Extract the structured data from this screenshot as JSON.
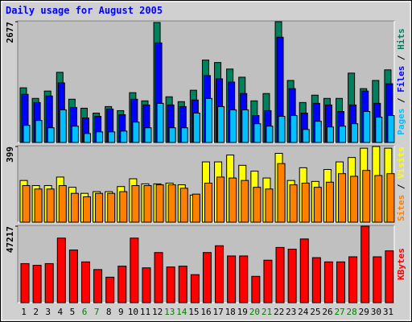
{
  "chart_data": [
    {
      "type": "bar",
      "title": "Daily usage for August 2005",
      "legend_separator": " / ",
      "ylim": [
        0,
        2677
      ],
      "yticks": [
        2677
      ],
      "series": [
        {
          "name": "Hits",
          "color": "#00805c",
          "values": [
            1212,
            977,
            1140,
            1556,
            959,
            760,
            651,
            796,
            706,
            1104,
            923,
            2660,
            1013,
            905,
            1158,
            1827,
            1773,
            1628,
            1447,
            923,
            1085,
            2677,
            1375,
            886,
            1049,
            977,
            977,
            1538,
            1194,
            1375,
            1610
          ]
        },
        {
          "name": "Files",
          "color": "#0000ff",
          "values": [
            1067,
            886,
            1031,
            1321,
            778,
            543,
            579,
            742,
            615,
            959,
            832,
            2207,
            832,
            796,
            941,
            1483,
            1411,
            1339,
            1085,
            597,
            706,
            2333,
            1194,
            651,
            868,
            832,
            687,
            832,
            1140,
            868,
            1302
          ]
        },
        {
          "name": "Pages",
          "color": "#00c0ff",
          "values": [
            380,
            488,
            326,
            724,
            362,
            199,
            235,
            235,
            253,
            452,
            326,
            868,
            326,
            326,
            651,
            977,
            796,
            724,
            724,
            416,
            362,
            579,
            597,
            289,
            470,
            344,
            362,
            416,
            687,
            561,
            597
          ]
        }
      ]
    },
    {
      "type": "bar",
      "ylim": [
        0,
        399
      ],
      "yticks": [
        399
      ],
      "series": [
        {
          "name": "Visits",
          "color": "#ffff00",
          "values": [
            220,
            193,
            193,
            238,
            184,
            152,
            161,
            161,
            188,
            229,
            202,
            202,
            206,
            197,
            143,
            318,
            318,
            354,
            300,
            269,
            233,
            363,
            220,
            287,
            215,
            278,
            318,
            341,
            390,
            399,
            390
          ]
        },
        {
          "name": "Sites",
          "color": "#ff8000",
          "values": [
            193,
            175,
            175,
            193,
            152,
            134,
            152,
            152,
            161,
            193,
            193,
            197,
            197,
            179,
            148,
            206,
            238,
            233,
            220,
            184,
            175,
            309,
            197,
            206,
            184,
            211,
            256,
            242,
            273,
            246,
            256
          ]
        }
      ]
    },
    {
      "type": "bar",
      "ylim": [
        0,
        47217
      ],
      "yticks": [
        47217
      ],
      "categories": [
        "1",
        "2",
        "3",
        "4",
        "5",
        "6",
        "7",
        "8",
        "9",
        "10",
        "11",
        "12",
        "13",
        "14",
        "15",
        "16",
        "17",
        "18",
        "19",
        "20",
        "21",
        "22",
        "23",
        "24",
        "25",
        "26",
        "27",
        "28",
        "29",
        "30",
        "31"
      ],
      "category_color": "#000000",
      "highlight_color": "#008000",
      "highlighted": [
        5,
        6,
        12,
        13,
        19,
        20,
        26,
        27
      ],
      "series": [
        {
          "name": "KBytes",
          "color": "#ff0000",
          "values": [
            24133,
            23084,
            24133,
            39871,
            32526,
            25182,
            20461,
            15739,
            22559,
            39871,
            21510,
            30952,
            22034,
            22559,
            17313,
            30952,
            35149,
            28855,
            28855,
            16264,
            26232,
            34101,
            33052,
            39346,
            27806,
            25182,
            25182,
            28330,
            47217,
            28330,
            32002
          ]
        }
      ]
    }
  ]
}
